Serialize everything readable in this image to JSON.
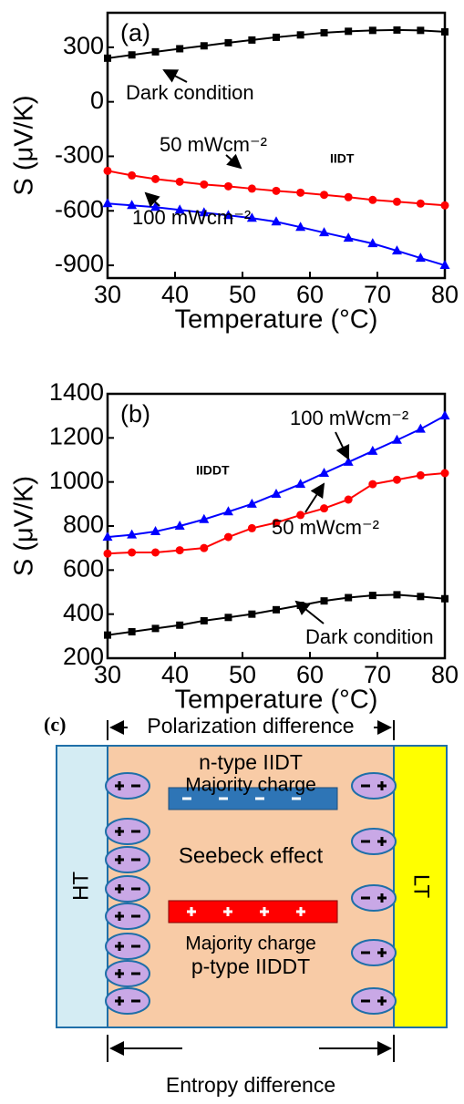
{
  "chart_data": [
    {
      "type": "line",
      "panel_label": "(a)",
      "x_label": "Temperature (°C)",
      "y_label": "S (μV/K)",
      "structure_label": "IIDT",
      "x": [
        30,
        33.6,
        37.1,
        40.7,
        44.3,
        47.9,
        51.4,
        55,
        58.6,
        62.1,
        65.7,
        69.3,
        72.9,
        76.4,
        80
      ],
      "xlim": [
        30,
        80
      ],
      "xticks": [
        30,
        40,
        50,
        60,
        70,
        80
      ],
      "ylim": [
        -970,
        490
      ],
      "yticks": [
        300,
        0,
        -300,
        -600,
        -900
      ],
      "series": [
        {
          "name": "Dark condition",
          "color": "#000000",
          "marker": "square",
          "values": [
            240,
            258,
            275,
            292,
            308,
            325,
            340,
            355,
            368,
            380,
            388,
            393,
            395,
            393,
            385
          ]
        },
        {
          "name": "50 mWcm⁻²",
          "color": "#ff0000",
          "marker": "circle",
          "values": [
            -380,
            -405,
            -425,
            -440,
            -455,
            -465,
            -478,
            -490,
            -500,
            -512,
            -525,
            -540,
            -550,
            -560,
            -570
          ]
        },
        {
          "name": "100 mWcm⁻²",
          "color": "#0000ff",
          "marker": "triangle",
          "values": [
            -560,
            -570,
            -580,
            -595,
            -610,
            -625,
            -640,
            -660,
            -690,
            -720,
            -750,
            -780,
            -820,
            -860,
            -900
          ]
        }
      ]
    },
    {
      "type": "line",
      "panel_label": "(b)",
      "x_label": "Temperature (°C)",
      "y_label": "S (μV/K)",
      "structure_label": "IIDDT",
      "x": [
        30,
        33.6,
        37.1,
        40.7,
        44.3,
        47.9,
        51.4,
        55,
        58.6,
        62.1,
        65.7,
        69.3,
        72.9,
        76.4,
        80
      ],
      "xlim": [
        30,
        80
      ],
      "xticks": [
        30,
        40,
        50,
        60,
        70,
        80
      ],
      "ylim": [
        200,
        1400
      ],
      "yticks": [
        200,
        400,
        600,
        800,
        1000,
        1200,
        1400
      ],
      "series": [
        {
          "name": "Dark condition",
          "color": "#000000",
          "marker": "square",
          "values": [
            305,
            320,
            335,
            350,
            370,
            385,
            400,
            420,
            440,
            460,
            475,
            485,
            488,
            480,
            470
          ]
        },
        {
          "name": "50 mWcm⁻²",
          "color": "#ff0000",
          "marker": "circle",
          "values": [
            675,
            680,
            680,
            690,
            700,
            750,
            790,
            815,
            850,
            880,
            920,
            990,
            1010,
            1030,
            1040
          ]
        },
        {
          "name": "100 mWcm⁻²",
          "color": "#0000ff",
          "marker": "triangle",
          "values": [
            750,
            760,
            775,
            800,
            830,
            865,
            900,
            945,
            990,
            1040,
            1090,
            1140,
            1190,
            1240,
            1300
          ]
        }
      ]
    }
  ],
  "diagram": {
    "panel_label": "(c)",
    "top_arrow": "Polarization difference",
    "bottom_arrow": "Entropy difference",
    "left_label": "HT",
    "right_label": "LT",
    "n_type": "n-type IIDT",
    "n_charge": "Majority charge",
    "center": "Seebeck effect",
    "p_charge": "Majority charge",
    "p_type": "p-type IIDDT"
  }
}
